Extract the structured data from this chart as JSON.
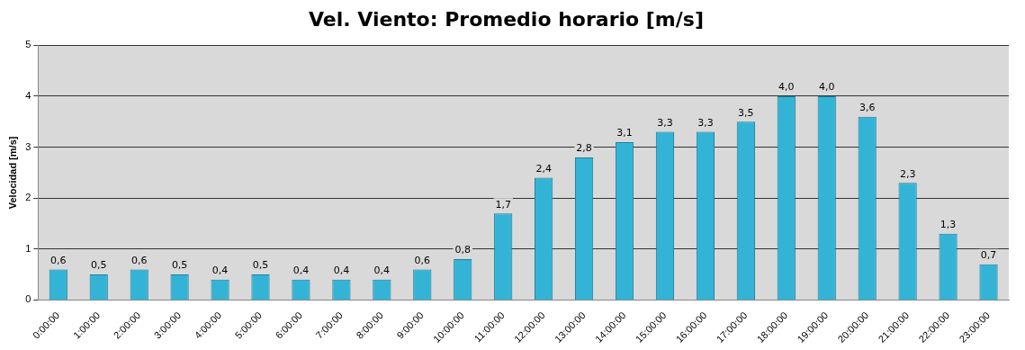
{
  "chart_data": {
    "type": "bar",
    "title": "Vel. Viento: Promedio horario [m/s]",
    "ylabel": "Velocidad [m/s]",
    "categories": [
      "0:00:00",
      "1:00:00",
      "2:00:00",
      "3:00:00",
      "4:00:00",
      "5:00:00",
      "6:00:00",
      "7:00:00",
      "8:00:00",
      "9:00:00",
      "10:00:00",
      "11:00:00",
      "12:00:00",
      "13:00:00",
      "14:00:00",
      "15:00:00",
      "16:00:00",
      "17:00:00",
      "18:00:00",
      "19:00:00",
      "20:00:00",
      "21:00:00",
      "22:00:00",
      "23:00:00"
    ],
    "values": [
      0.6,
      0.5,
      0.6,
      0.5,
      0.4,
      0.5,
      0.4,
      0.4,
      0.4,
      0.6,
      0.8,
      1.7,
      2.4,
      2.8,
      3.1,
      3.3,
      3.3,
      3.5,
      4.0,
      4.0,
      3.6,
      2.3,
      1.3,
      0.7
    ],
    "value_labels": [
      "0,6",
      "0,5",
      "0,6",
      "0,5",
      "0,4",
      "0,5",
      "0,4",
      "0,4",
      "0,4",
      "0,6",
      "0,8",
      "1,7",
      "2,4",
      "2,8",
      "3,1",
      "3,3",
      "3,3",
      "3,5",
      "4,0",
      "4,0",
      "3,6",
      "2,3",
      "1,3",
      "0,7"
    ],
    "color": "#33b4d6",
    "ylim": [
      0,
      5
    ],
    "yticks": [
      0,
      1,
      2,
      3,
      4,
      5
    ],
    "grid": "y",
    "legend": false
  }
}
